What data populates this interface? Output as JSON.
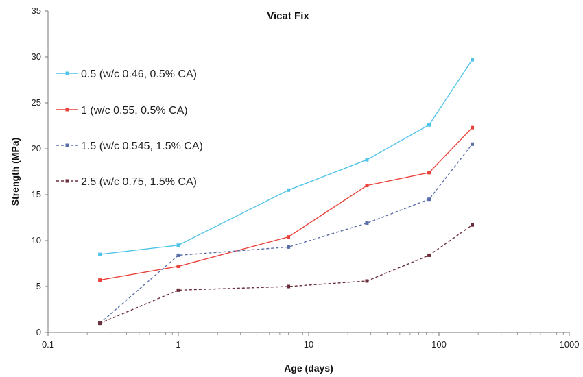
{
  "chart_data": {
    "type": "line",
    "title": "Vicat Fix",
    "xlabel": "Age (days)",
    "ylabel": "Strength (MPa)",
    "xscale": "log",
    "xlim": [
      0.1,
      1000
    ],
    "ylim": [
      0,
      35
    ],
    "xticks": [
      "0.1",
      "1",
      "10",
      "100",
      "1000"
    ],
    "yticks": [
      "0",
      "5",
      "10",
      "15",
      "20",
      "25",
      "30",
      "35"
    ],
    "grid": false,
    "legend_position": "upper-left",
    "series": [
      {
        "name": "0.5 (w/c 0.46, 0.5% CA)",
        "color": "#4fc3e8",
        "dash": "solid",
        "x": [
          0.25,
          1,
          7,
          28,
          84,
          180
        ],
        "y": [
          8.5,
          9.5,
          15.5,
          18.8,
          22.6,
          29.7
        ]
      },
      {
        "name": "1 (w/c 0.55, 0.5% CA)",
        "color": "#e8423a",
        "dash": "solid",
        "x": [
          0.25,
          1,
          7,
          28,
          84,
          180
        ],
        "y": [
          5.7,
          7.2,
          10.4,
          16.0,
          17.4,
          22.3
        ]
      },
      {
        "name": "1.5 (w/c 0.545, 1.5% CA)",
        "color": "#5a6fa8",
        "dash": "dashed",
        "x": [
          0.25,
          1,
          7,
          28,
          84,
          180
        ],
        "y": [
          1.0,
          8.4,
          9.3,
          11.9,
          14.5,
          20.5
        ]
      },
      {
        "name": "2.5 (w/c 0.75, 1.5% CA)",
        "color": "#6b2e3a",
        "dash": "dashed",
        "x": [
          0.25,
          1,
          7,
          28,
          84,
          180
        ],
        "y": [
          1.0,
          4.6,
          5.0,
          5.6,
          8.4,
          11.7
        ]
      }
    ]
  }
}
